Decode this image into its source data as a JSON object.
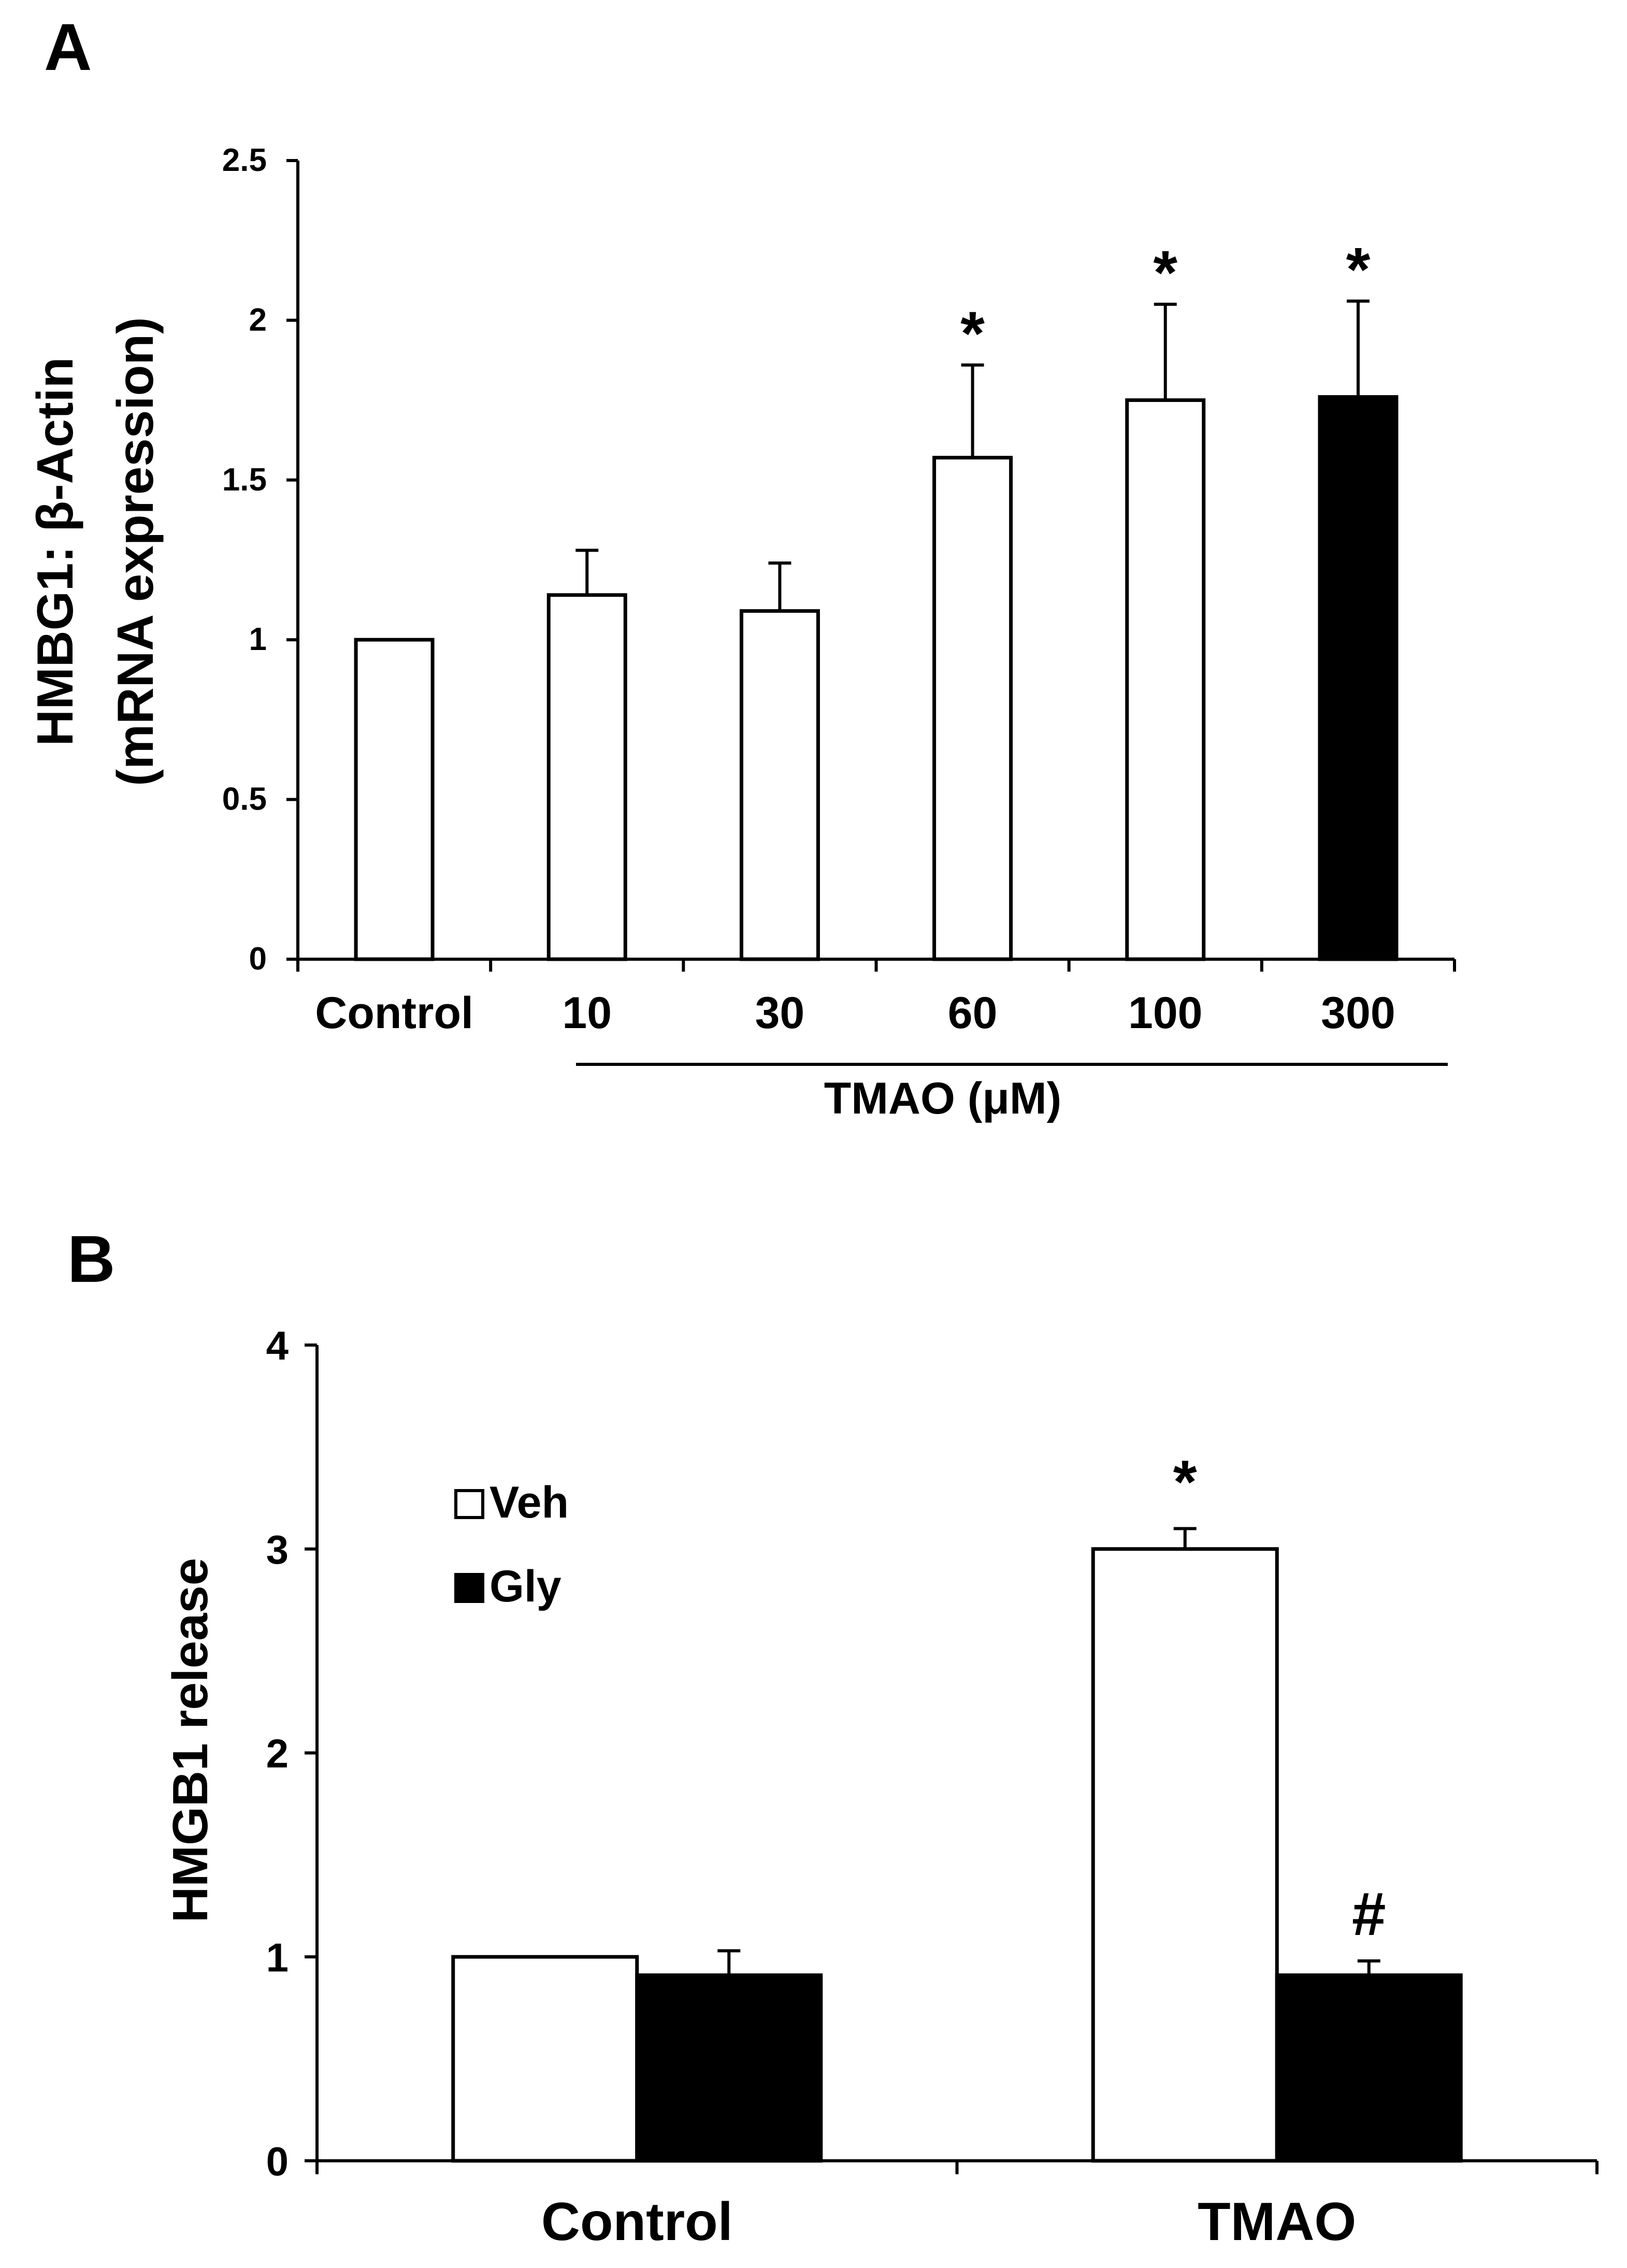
{
  "colors": {
    "ink": "#000000",
    "paper": "#ffffff",
    "bar_filled": "#000000",
    "bar_open": "#ffffff"
  },
  "chart_data": [
    {
      "panel": "A",
      "type": "bar",
      "ylabel_line1": "HMBG1: β-Actin",
      "ylabel_line2": "(mRNA expression)",
      "ylim": [
        0,
        2.5
      ],
      "yticks": [
        0,
        0.5,
        1,
        1.5,
        2,
        2.5
      ],
      "ytick_labels": [
        "0",
        "0.5",
        "1",
        "1.5",
        "2",
        "2.5"
      ],
      "categories": [
        "Control",
        "10",
        "30",
        "60",
        "100",
        "300"
      ],
      "values": [
        1.0,
        1.14,
        1.09,
        1.57,
        1.75,
        1.76
      ],
      "errors": [
        0.0,
        0.14,
        0.15,
        0.29,
        0.3,
        0.3
      ],
      "fills": [
        "open",
        "open",
        "open",
        "open",
        "open",
        "filled"
      ],
      "significance": [
        "",
        "",
        "",
        "*",
        "*",
        "*"
      ],
      "group_label": "TMAO (μM)",
      "group_span": [
        "10",
        "300"
      ]
    },
    {
      "panel": "B",
      "type": "bar",
      "ylabel": "HMGB1 release",
      "ylim": [
        0,
        4
      ],
      "yticks": [
        0,
        1,
        2,
        3,
        4
      ],
      "ytick_labels": [
        "0",
        "1",
        "2",
        "3",
        "4"
      ],
      "categories": [
        "Control",
        "TMAO"
      ],
      "series": [
        {
          "name": "Veh",
          "fill": "open",
          "values": [
            1.0,
            3.0
          ],
          "errors": [
            0.0,
            0.1
          ],
          "significance": [
            "",
            "*"
          ]
        },
        {
          "name": "Gly",
          "fill": "filled",
          "values": [
            0.91,
            0.91
          ],
          "errors": [
            0.12,
            0.07
          ],
          "significance": [
            "",
            "#"
          ]
        }
      ],
      "legend_position": "top-left"
    }
  ]
}
